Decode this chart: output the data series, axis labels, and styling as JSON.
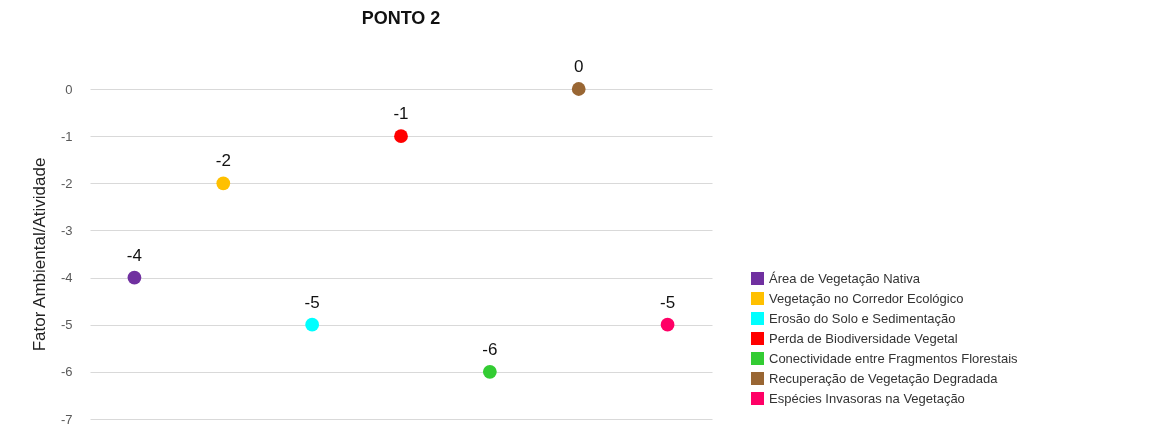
{
  "chart_data": {
    "type": "scatter",
    "title": "PONTO 2",
    "ylabel": "Fator Ambiental/Atividade",
    "categories": [
      null,
      null,
      null,
      null,
      null,
      null,
      null
    ],
    "series": [
      {
        "name": "Área de Vegetação Nativa",
        "color": "#7030a0",
        "values": [
          -4,
          null,
          null,
          null,
          null,
          null,
          null
        ]
      },
      {
        "name": "Vegetação no Corredor Ecológico",
        "color": "#ffc000",
        "values": [
          null,
          -2,
          null,
          null,
          null,
          null,
          null
        ]
      },
      {
        "name": "Erosão do Solo e Sedimentação",
        "color": "#00ffff",
        "values": [
          null,
          null,
          -5,
          null,
          null,
          null,
          null
        ]
      },
      {
        "name": "Perda de Biodiversidade Vegetal",
        "color": "#ff0000",
        "values": [
          null,
          null,
          null,
          -1,
          null,
          null,
          null
        ]
      },
      {
        "name": "Conectividade entre Fragmentos Florestais",
        "color": "#33cc33",
        "values": [
          null,
          null,
          null,
          null,
          -6,
          null,
          null
        ]
      },
      {
        "name": "Recuperação de Vegetação Degradada",
        "color": "#996633",
        "values": [
          null,
          null,
          null,
          null,
          null,
          0,
          null
        ]
      },
      {
        "name": "Espécies Invasoras na Vegetação",
        "color": "#ff0066",
        "values": [
          null,
          null,
          null,
          null,
          null,
          null,
          -5
        ]
      }
    ],
    "ylim": [
      -7,
      0
    ],
    "yticks": [
      0,
      -1,
      -2,
      -3,
      -4,
      -5,
      -6,
      -7
    ],
    "grid": "y",
    "legend": "bottom right",
    "marker": "circle",
    "data_labels": true
  }
}
